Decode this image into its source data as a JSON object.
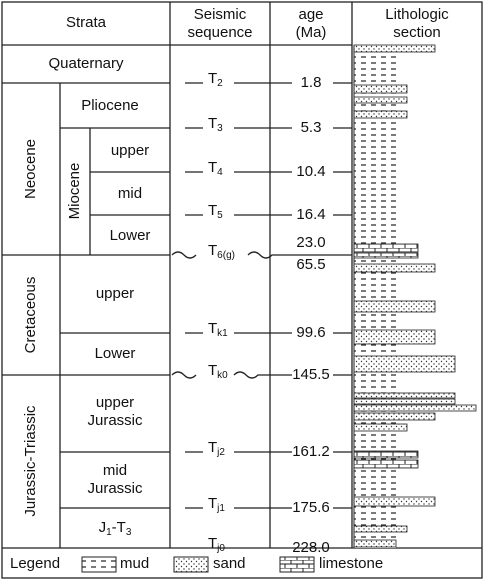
{
  "header": {
    "strata": "Strata",
    "seismic": [
      "Seismic",
      "sequence"
    ],
    "age": [
      "age",
      "(Ma)"
    ],
    "lithology": [
      "Lithologic",
      "section"
    ]
  },
  "strata": {
    "quaternary": "Quaternary",
    "neocene": "Neocene",
    "pliocene": "Pliocene",
    "miocene": "Miocene",
    "miocene_upper": "upper",
    "miocene_mid": "mid",
    "miocene_lower": "Lower",
    "cretaceous": "Cretaceous",
    "cretaceous_upper": "upper",
    "cretaceous_lower": "Lower",
    "jurassic_triassic": "Jurassic-Triassic",
    "upper_jurassic": [
      "upper",
      "Jurassic"
    ],
    "mid_jurassic": [
      "mid",
      "Jurassic"
    ],
    "j1_t3": [
      "J",
      "1",
      "-T",
      "3"
    ]
  },
  "horizons": [
    {
      "name": "T",
      "sub": "2"
    },
    {
      "name": "T",
      "sub": "3"
    },
    {
      "name": "T",
      "sub": "4"
    },
    {
      "name": "T",
      "sub": "5"
    },
    {
      "name": "T",
      "sub": "6(g)"
    },
    {
      "name": "T",
      "sub": "k1"
    },
    {
      "name": "T",
      "sub": "k0"
    },
    {
      "name": "T",
      "sub": "j2"
    },
    {
      "name": "T",
      "sub": "j1"
    },
    {
      "name": "T",
      "sub": "j0"
    }
  ],
  "ages": [
    "1.8",
    "5.3",
    "10.4",
    "16.4",
    "23.0",
    "65.5",
    "99.6",
    "145.5",
    "161.2",
    "175.6",
    "228.0"
  ],
  "legend": {
    "title": "Legend",
    "items": [
      "mud",
      "sand",
      "limestone"
    ]
  }
}
